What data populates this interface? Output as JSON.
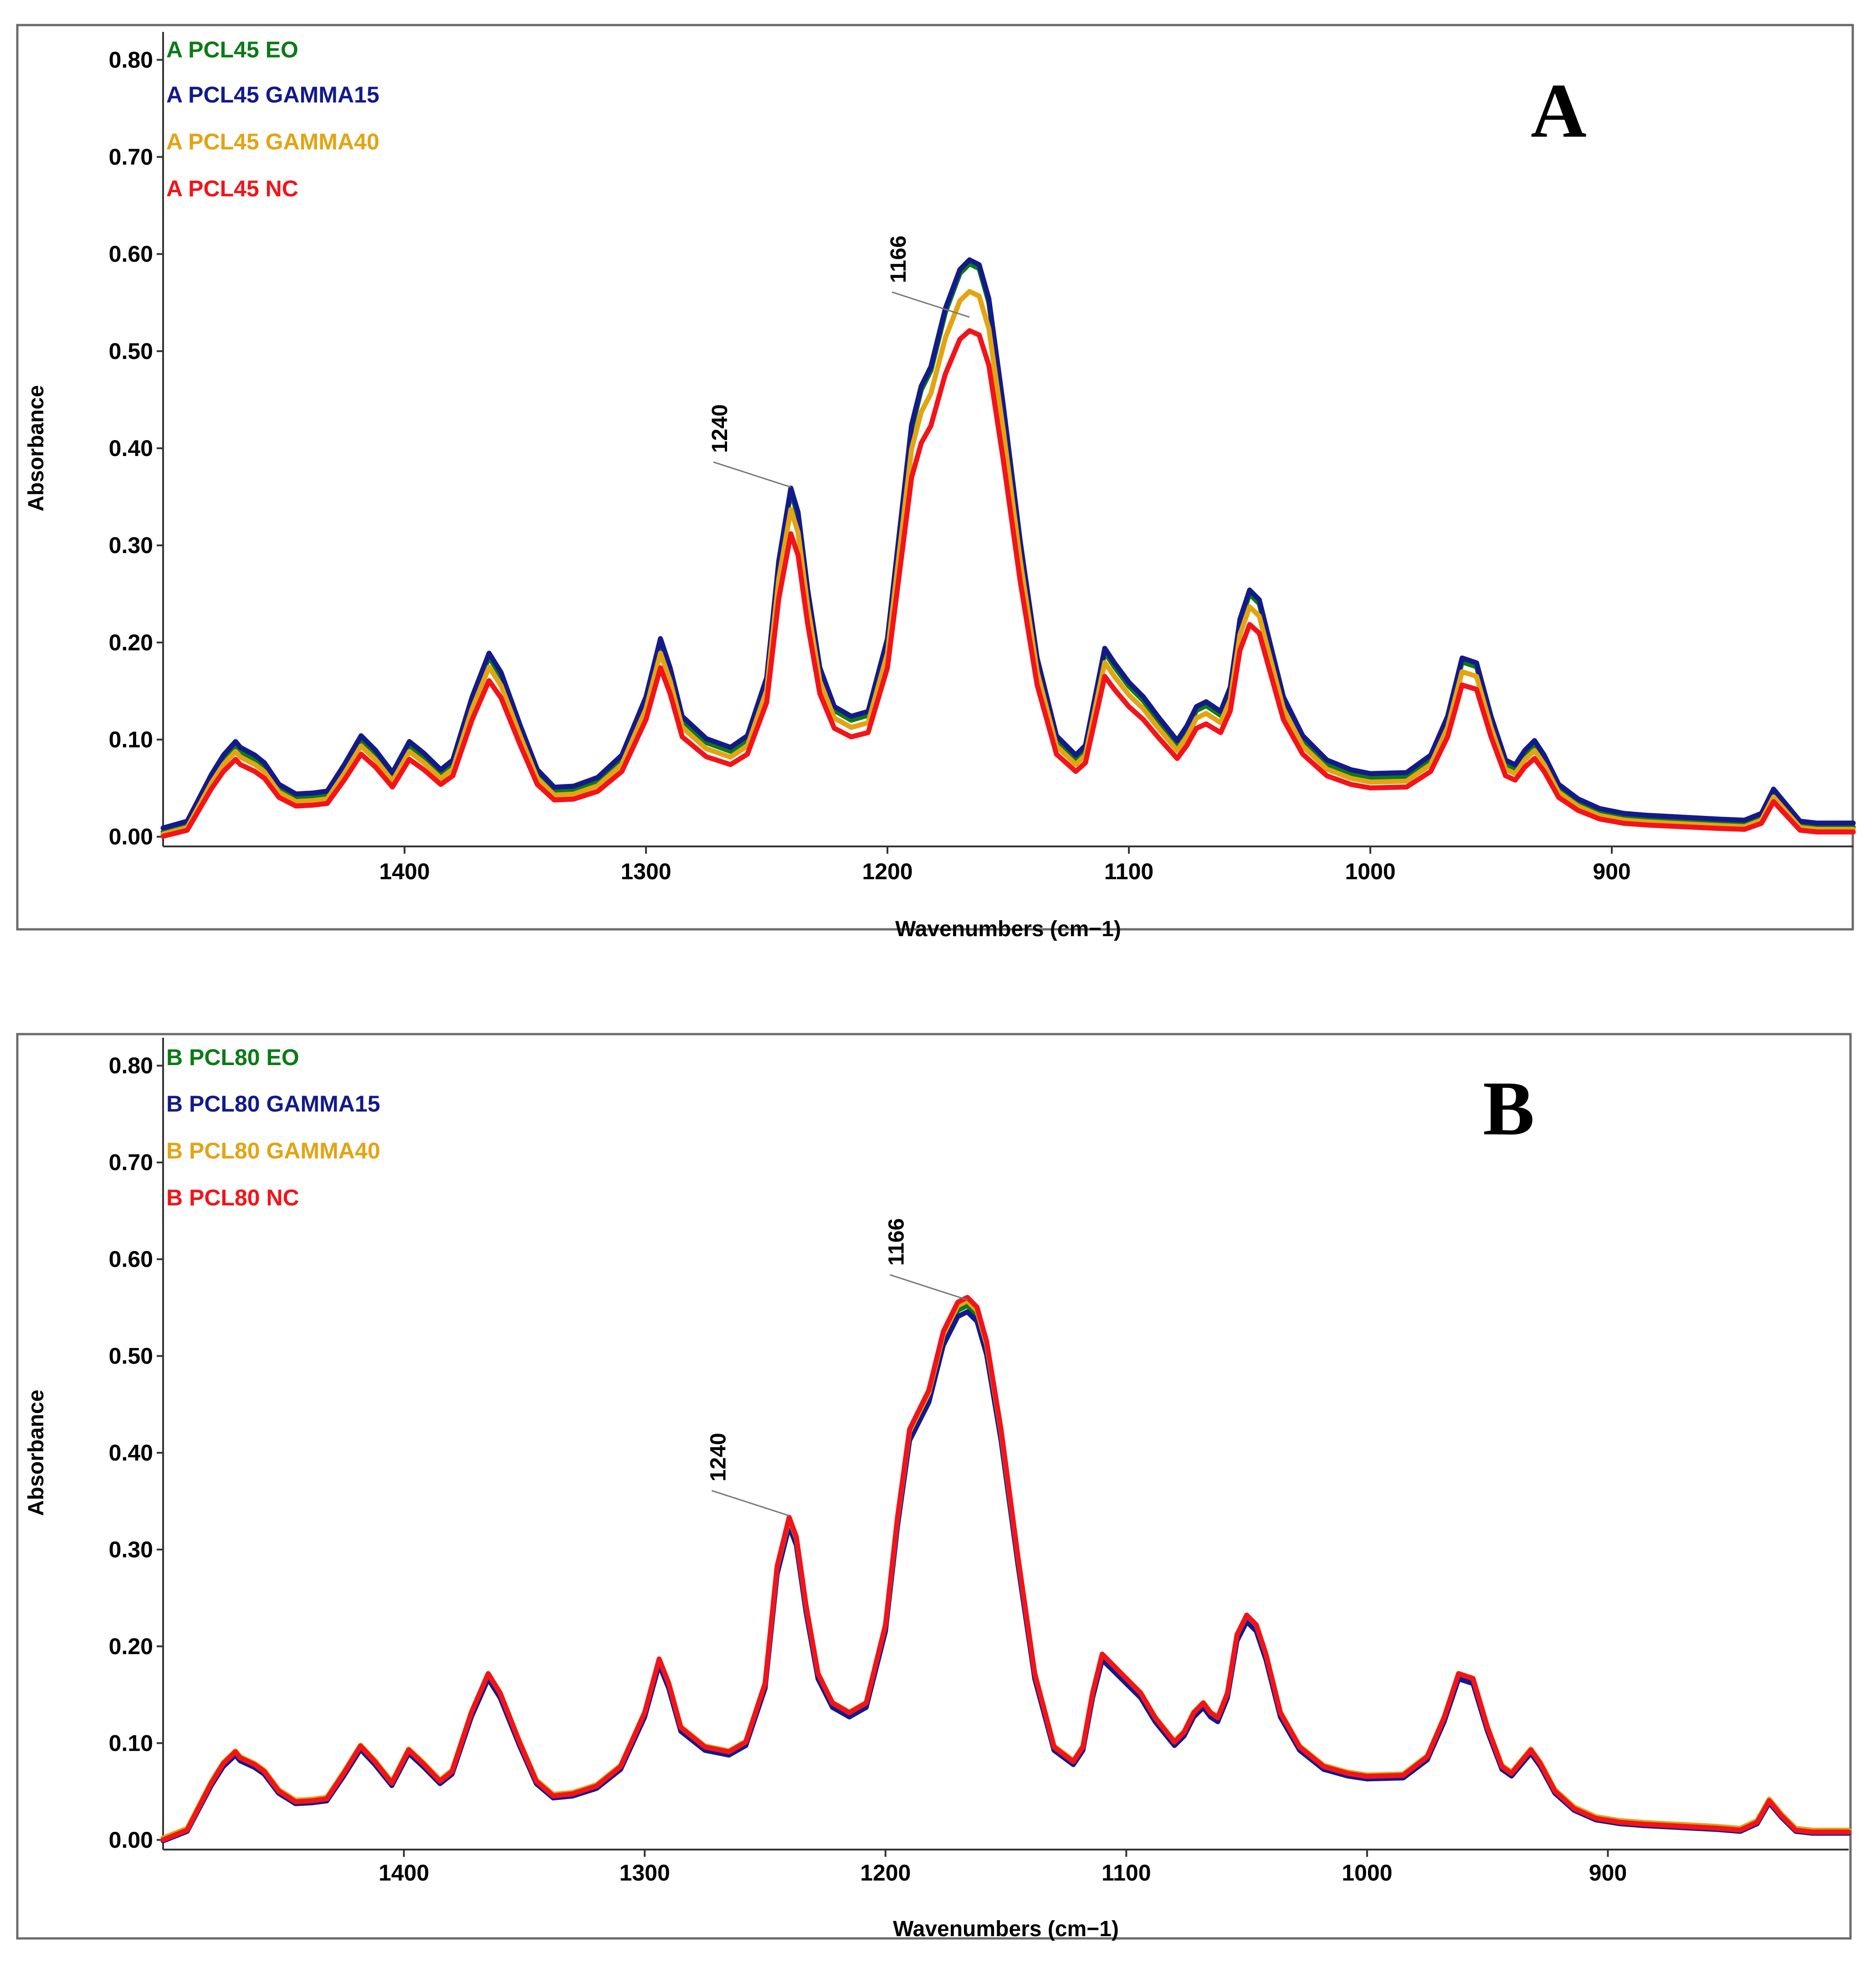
{
  "chart_data": [
    {
      "type": "line",
      "panel_label": "A",
      "xlabel": "Wavenumbers (cm−1)",
      "ylabel": "Absorbance",
      "xlim": [
        1500,
        800
      ],
      "ylim": [
        -0.01,
        0.81
      ],
      "x_ticks": [
        1400,
        1300,
        1200,
        1100,
        1000,
        900
      ],
      "x_tick_labels": [
        "1400",
        "1300",
        "1200",
        "1100",
        "1000",
        "900"
      ],
      "y_ticks": [
        0.0,
        0.1,
        0.2,
        0.3,
        0.4,
        0.5,
        0.6,
        0.7,
        0.8
      ],
      "y_tick_labels": [
        "0.00",
        "0.10",
        "0.20",
        "0.30",
        "0.40",
        "0.50",
        "0.60",
        "0.70",
        "0.80"
      ],
      "grid": false,
      "legend_position": "top-left",
      "annotations": [
        {
          "text": "1240",
          "x": 1240,
          "y": 0.36
        },
        {
          "text": "1166",
          "x": 1166,
          "y": 0.535
        }
      ],
      "series": [
        {
          "name": "A PCL45 EO",
          "color": "#0b7a16",
          "scale": 1.0,
          "offset": 0.0
        },
        {
          "name": "A PCL45 GAMMA15",
          "color": "#121a8c",
          "scale": 1.0,
          "offset": 0.004
        },
        {
          "name": "A PCL45 GAMMA40",
          "color": "#e3a413",
          "scale": 0.955,
          "offset": -0.002
        },
        {
          "name": "A PCL45 NC",
          "color": "#f2141a",
          "scale": 0.89,
          "offset": -0.004
        }
      ],
      "base_spectrum": {
        "x": [
          1500,
          1490,
          1480,
          1475,
          1470,
          1468,
          1462,
          1458,
          1452,
          1445,
          1438,
          1432,
          1425,
          1418,
          1412,
          1405,
          1398,
          1392,
          1385,
          1380,
          1372,
          1365,
          1360,
          1352,
          1345,
          1338,
          1330,
          1320,
          1310,
          1300,
          1294,
          1290,
          1285,
          1275,
          1265,
          1258,
          1250,
          1245,
          1240,
          1237,
          1233,
          1228,
          1222,
          1215,
          1208,
          1200,
          1195,
          1190,
          1186,
          1182,
          1176,
          1170,
          1166,
          1162,
          1158,
          1152,
          1145,
          1138,
          1130,
          1122,
          1118,
          1114,
          1110,
          1106,
          1100,
          1094,
          1088,
          1080,
          1076,
          1072,
          1068,
          1065,
          1062,
          1058,
          1054,
          1050,
          1046,
          1042,
          1036,
          1028,
          1018,
          1008,
          1000,
          985,
          975,
          968,
          962,
          956,
          950,
          944,
          940,
          936,
          932,
          928,
          922,
          914,
          905,
          895,
          885,
          870,
          855,
          845,
          838,
          833,
          828,
          822,
          815,
          800
        ],
        "y": [
          0.005,
          0.012,
          0.06,
          0.08,
          0.094,
          0.088,
          0.08,
          0.072,
          0.05,
          0.04,
          0.041,
          0.043,
          0.07,
          0.1,
          0.085,
          0.062,
          0.094,
          0.082,
          0.065,
          0.075,
          0.14,
          0.185,
          0.165,
          0.11,
          0.065,
          0.047,
          0.048,
          0.057,
          0.08,
          0.14,
          0.2,
          0.17,
          0.12,
          0.097,
          0.088,
          0.1,
          0.16,
          0.28,
          0.355,
          0.33,
          0.25,
          0.17,
          0.13,
          0.12,
          0.125,
          0.2,
          0.31,
          0.42,
          0.46,
          0.48,
          0.54,
          0.58,
          0.59,
          0.585,
          0.55,
          0.44,
          0.3,
          0.18,
          0.1,
          0.08,
          0.09,
          0.14,
          0.19,
          0.175,
          0.155,
          0.14,
          0.12,
          0.095,
          0.11,
          0.13,
          0.135,
          0.13,
          0.125,
          0.15,
          0.22,
          0.25,
          0.24,
          0.2,
          0.14,
          0.1,
          0.075,
          0.065,
          0.061,
          0.062,
          0.08,
          0.12,
          0.18,
          0.175,
          0.12,
          0.075,
          0.07,
          0.085,
          0.095,
          0.08,
          0.05,
          0.035,
          0.025,
          0.02,
          0.018,
          0.016,
          0.014,
          0.013,
          0.02,
          0.045,
          0.03,
          0.012,
          0.01,
          0.01
        ]
      }
    },
    {
      "type": "line",
      "panel_label": "B",
      "xlabel": "Wavenumbers (cm−1)",
      "ylabel": "Absorbance",
      "xlim": [
        1500,
        800
      ],
      "ylim": [
        -0.01,
        0.81
      ],
      "x_ticks": [
        1400,
        1300,
        1200,
        1100,
        1000,
        900
      ],
      "x_tick_labels": [
        "1400",
        "1300",
        "1200",
        "1100",
        "1000",
        "900"
      ],
      "y_ticks": [
        0.0,
        0.1,
        0.2,
        0.3,
        0.4,
        0.5,
        0.6,
        0.7,
        0.8
      ],
      "y_tick_labels": [
        "0.00",
        "0.10",
        "0.20",
        "0.30",
        "0.40",
        "0.50",
        "0.60",
        "0.70",
        "0.80"
      ],
      "grid": false,
      "legend_position": "top-left",
      "annotations": [
        {
          "text": "1240",
          "x": 1240,
          "y": 0.335
        },
        {
          "text": "1166",
          "x": 1166,
          "y": 0.558
        }
      ],
      "series": [
        {
          "name": "B PCL80 EO",
          "color": "#0b7a16",
          "scale": 0.995,
          "offset": 0.0
        },
        {
          "name": "B PCL80 GAMMA15",
          "color": "#121a8c",
          "scale": 0.985,
          "offset": -0.001
        },
        {
          "name": "B PCL80 GAMMA40",
          "color": "#e3a413",
          "scale": 1.0,
          "offset": 0.002
        },
        {
          "name": "B PCL80 NC",
          "color": "#f2141a",
          "scale": 1.01,
          "offset": 0.0
        }
      ],
      "base_spectrum": {
        "x": [
          1500,
          1490,
          1480,
          1475,
          1470,
          1468,
          1462,
          1458,
          1452,
          1445,
          1438,
          1432,
          1425,
          1418,
          1412,
          1405,
          1398,
          1392,
          1385,
          1380,
          1372,
          1365,
          1360,
          1352,
          1345,
          1338,
          1330,
          1320,
          1310,
          1300,
          1294,
          1290,
          1285,
          1275,
          1265,
          1258,
          1250,
          1245,
          1240,
          1237,
          1233,
          1228,
          1222,
          1215,
          1208,
          1200,
          1195,
          1190,
          1186,
          1182,
          1176,
          1170,
          1166,
          1162,
          1158,
          1152,
          1145,
          1138,
          1130,
          1122,
          1118,
          1114,
          1110,
          1106,
          1100,
          1094,
          1088,
          1080,
          1076,
          1072,
          1068,
          1065,
          1062,
          1058,
          1054,
          1050,
          1046,
          1042,
          1036,
          1028,
          1018,
          1008,
          1000,
          985,
          975,
          968,
          962,
          956,
          950,
          944,
          940,
          936,
          932,
          928,
          922,
          914,
          905,
          895,
          885,
          870,
          855,
          845,
          838,
          833,
          828,
          822,
          815,
          800
        ],
        "y": [
          0.0,
          0.01,
          0.058,
          0.078,
          0.09,
          0.084,
          0.077,
          0.07,
          0.05,
          0.039,
          0.04,
          0.042,
          0.068,
          0.096,
          0.08,
          0.058,
          0.092,
          0.078,
          0.06,
          0.07,
          0.13,
          0.17,
          0.15,
          0.1,
          0.06,
          0.045,
          0.047,
          0.055,
          0.075,
          0.13,
          0.185,
          0.16,
          0.115,
          0.095,
          0.09,
          0.1,
          0.16,
          0.28,
          0.33,
          0.31,
          0.24,
          0.17,
          0.14,
          0.13,
          0.14,
          0.22,
          0.33,
          0.42,
          0.44,
          0.46,
          0.52,
          0.55,
          0.555,
          0.545,
          0.51,
          0.42,
          0.29,
          0.17,
          0.095,
          0.08,
          0.095,
          0.15,
          0.19,
          0.18,
          0.165,
          0.15,
          0.125,
          0.1,
          0.11,
          0.13,
          0.14,
          0.13,
          0.125,
          0.15,
          0.21,
          0.23,
          0.22,
          0.19,
          0.13,
          0.095,
          0.075,
          0.068,
          0.065,
          0.066,
          0.085,
          0.125,
          0.17,
          0.165,
          0.115,
          0.075,
          0.068,
          0.08,
          0.092,
          0.078,
          0.05,
          0.032,
          0.022,
          0.018,
          0.016,
          0.014,
          0.012,
          0.01,
          0.018,
          0.04,
          0.025,
          0.01,
          0.008,
          0.008
        ]
      }
    }
  ]
}
